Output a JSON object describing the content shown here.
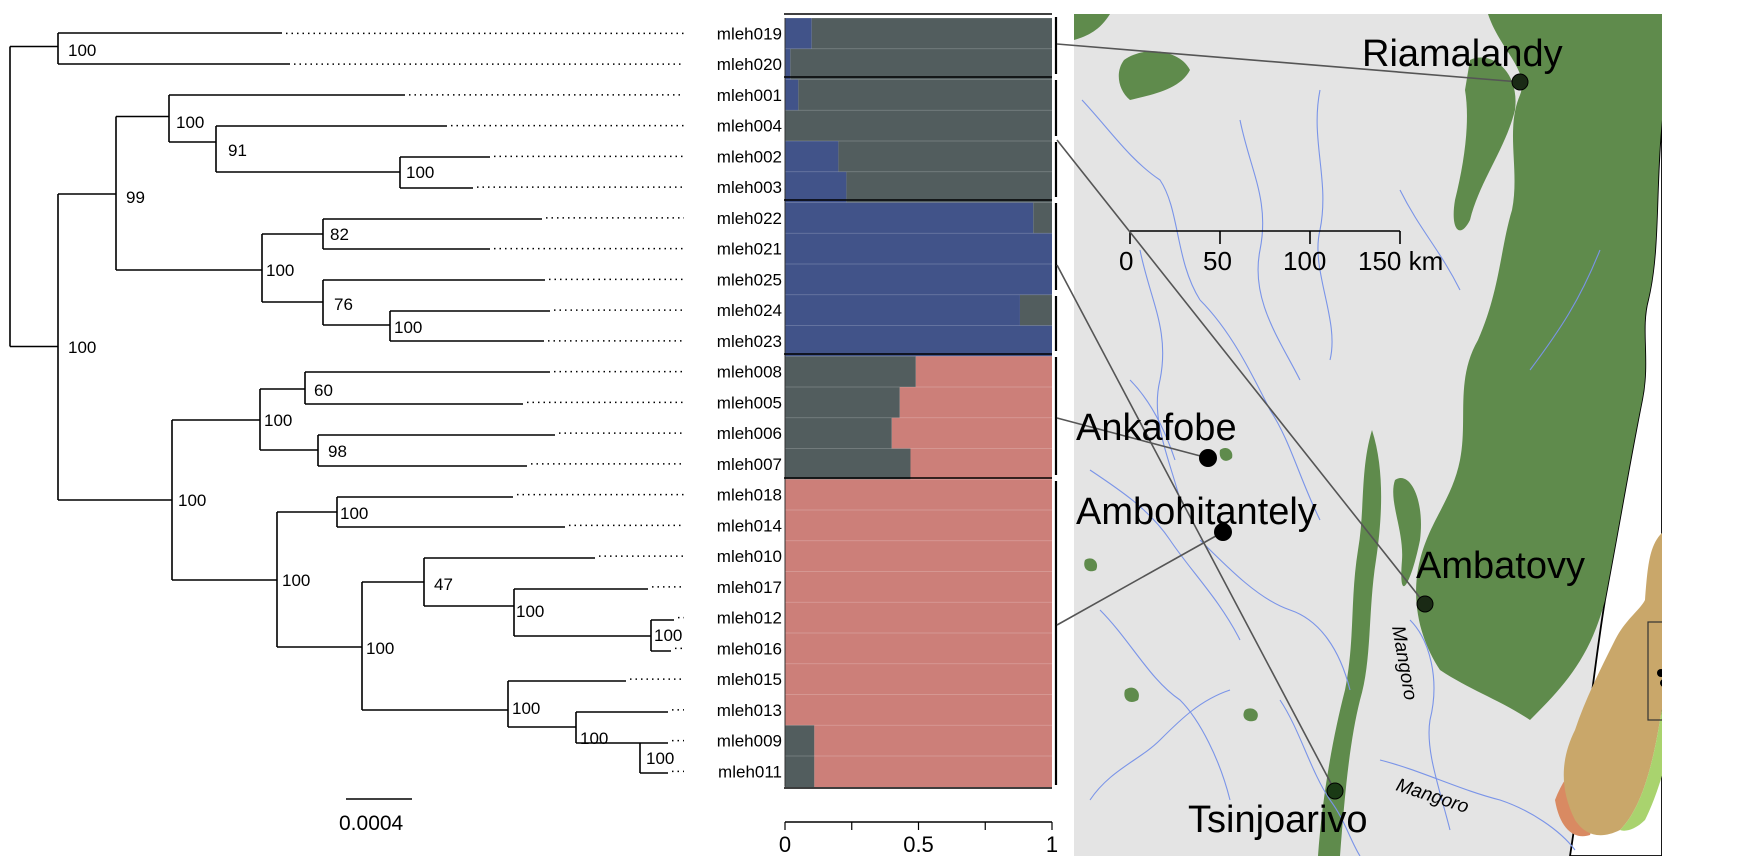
{
  "tree": {
    "scale_bar_label": "0.0004",
    "tips": [
      "mleh019",
      "mleh020",
      "mleh001",
      "mleh004",
      "mleh002",
      "mleh003",
      "mleh022",
      "mleh021",
      "mleh025",
      "mleh024",
      "mleh023",
      "mleh008",
      "mleh005",
      "mleh006",
      "mleh007",
      "mleh018",
      "mleh014",
      "mleh010",
      "mleh017",
      "mleh012",
      "mleh016",
      "mleh015",
      "mleh013",
      "mleh009",
      "mleh011"
    ],
    "support_values": [
      "100",
      "100",
      "91",
      "100",
      "99",
      "82",
      "100",
      "76",
      "100",
      "100",
      "60",
      "100",
      "98",
      "100",
      "100",
      "100",
      "47",
      "100",
      "100",
      "100",
      "100",
      "100",
      "100"
    ]
  },
  "chart_data": {
    "type": "bar",
    "orientation": "horizontal-stacked",
    "categories": [
      "mleh019",
      "mleh020",
      "mleh001",
      "mleh004",
      "mleh002",
      "mleh003",
      "mleh022",
      "mleh021",
      "mleh025",
      "mleh024",
      "mleh023",
      "mleh008",
      "mleh005",
      "mleh006",
      "mleh007",
      "mleh018",
      "mleh014",
      "mleh010",
      "mleh017",
      "mleh012",
      "mleh016",
      "mleh015",
      "mleh013",
      "mleh009",
      "mleh011"
    ],
    "series": [
      {
        "color": "#415389",
        "values": [
          0.1,
          0.02,
          0.05,
          0.0,
          0.2,
          0.23,
          0.93,
          1.0,
          1.0,
          0.88,
          1.0,
          0.0,
          0.0,
          0.0,
          0.0,
          0.0,
          0.0,
          0.0,
          0.0,
          0.0,
          0.0,
          0.0,
          0.0,
          0.0,
          0.0
        ]
      },
      {
        "color": "#525d5e",
        "values": [
          0.9,
          0.98,
          0.95,
          1.0,
          0.8,
          0.77,
          0.07,
          0.0,
          0.0,
          0.12,
          0.0,
          0.49,
          0.43,
          0.4,
          0.47,
          0.0,
          0.0,
          0.0,
          0.0,
          0.0,
          0.0,
          0.0,
          0.0,
          0.11,
          0.11
        ]
      },
      {
        "color": "#cc7f79",
        "values": [
          0.0,
          0.0,
          0.0,
          0.0,
          0.0,
          0.0,
          0.0,
          0.0,
          0.0,
          0.0,
          0.0,
          0.51,
          0.57,
          0.6,
          0.53,
          1.0,
          1.0,
          1.0,
          1.0,
          1.0,
          1.0,
          1.0,
          1.0,
          0.89,
          0.89
        ]
      }
    ],
    "xlim": [
      0,
      1
    ],
    "ticks": [
      "0",
      "0.5",
      "1"
    ]
  },
  "map": {
    "localities": [
      "Riamalandy",
      "Ankafobe",
      "Ambohitantely",
      "Ambatovy",
      "Tsinjoarivo"
    ],
    "river_labels": [
      "Mangoro",
      "Mangoro"
    ],
    "scale_labels": [
      "0",
      "50",
      "100",
      "150 km"
    ],
    "colors": {
      "background": "#e4e4e4",
      "forest": "#5f8b4c",
      "river": "#7a94e8",
      "inset_forest": "#a9d36e",
      "inset_highland": "#c9a76a",
      "inset_south": "#d98a62"
    }
  }
}
